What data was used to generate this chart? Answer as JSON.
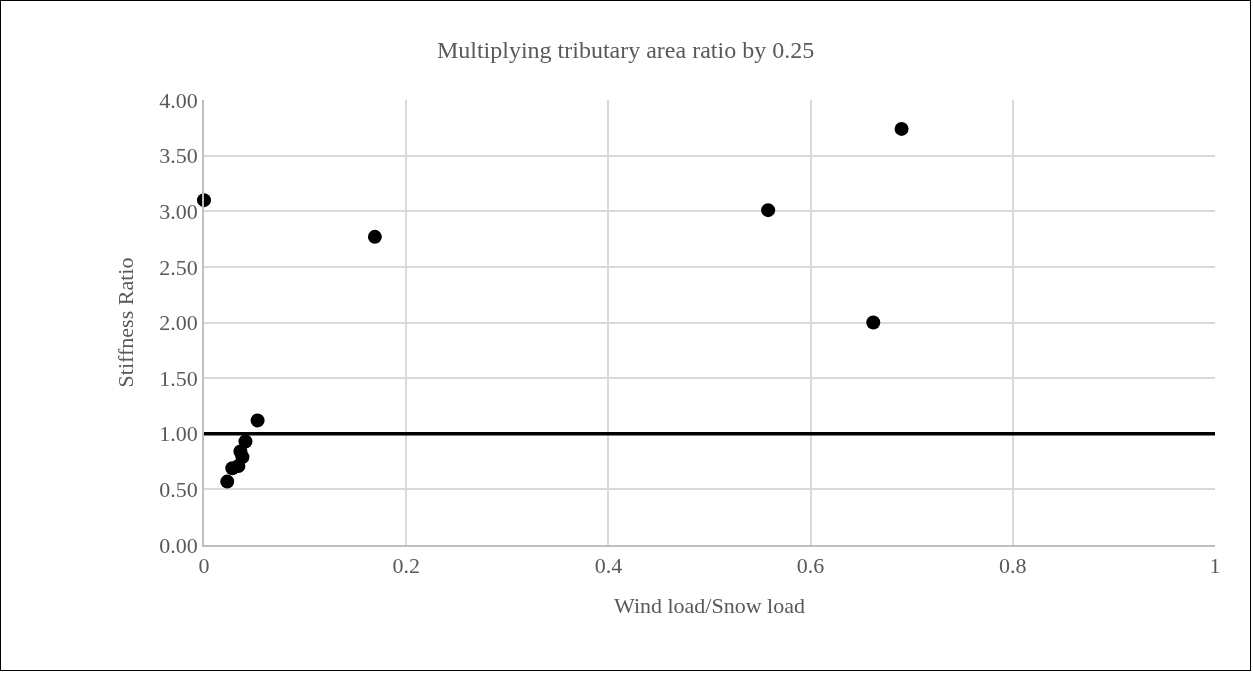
{
  "chart_data": {
    "type": "scatter",
    "title": "Multiplying tributary area ratio by 0.25",
    "xlabel": "Wind load/Snow load",
    "ylabel": "Stiffness Ratio",
    "series": [
      {
        "color": "#000000",
        "x": [
          0.0,
          0.169,
          0.558,
          0.662,
          0.69,
          0.053,
          0.041,
          0.036,
          0.038,
          0.028,
          0.034,
          0.023
        ],
        "values": [
          3.1,
          2.77,
          3.01,
          2.0,
          3.74,
          1.12,
          0.93,
          0.84,
          0.79,
          0.69,
          0.71,
          0.57
        ]
      }
    ],
    "xlim": [
      0,
      1
    ],
    "xticks": [
      0,
      0.2,
      0.4,
      0.6,
      0.8,
      1
    ],
    "ylim": [
      0,
      4
    ],
    "yticks": [
      {
        "value": 0,
        "label": "0.00"
      },
      {
        "value": 0.5,
        "label": "0.50"
      },
      {
        "value": 1,
        "label": "1.00"
      },
      {
        "value": 1.5,
        "label": "1.50"
      },
      {
        "value": 2,
        "label": "2.00"
      },
      {
        "value": 2.5,
        "label": "2.50"
      },
      {
        "value": 3,
        "label": "3.00"
      },
      {
        "value": 3.5,
        "label": "3.50"
      },
      {
        "value": 4,
        "label": "4.00"
      }
    ],
    "ref_lines": [
      {
        "axis": "y",
        "value": 1,
        "color": "#000000",
        "line_style": "solid"
      }
    ],
    "grid": true,
    "marker": "circle"
  }
}
